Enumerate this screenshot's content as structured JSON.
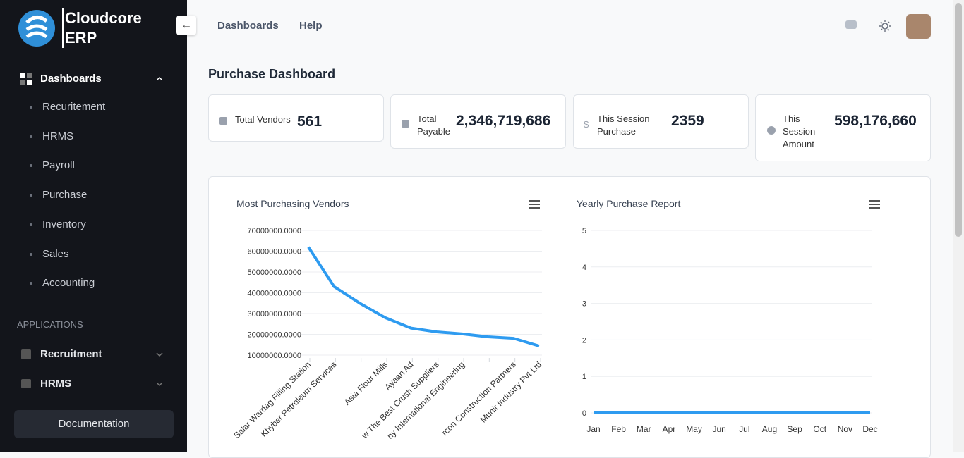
{
  "brand": {
    "line1": "Cloudcore",
    "line2": "ERP"
  },
  "sidebar": {
    "section": "Dashboards",
    "items": [
      "Recuritement",
      "HRMS",
      "Payroll",
      "Purchase",
      "Inventory",
      "Sales",
      "Accounting"
    ],
    "apps_heading": "APPLICATIONS",
    "apps": [
      "Recruitment",
      "HRMS"
    ],
    "documentation": "Documentation"
  },
  "header": {
    "nav": [
      "Dashboards",
      "Help"
    ]
  },
  "page_title": "Purchase Dashboard",
  "cards": [
    {
      "label": "Total Vendors",
      "value": "561"
    },
    {
      "label": "Total Payable",
      "value": "2,346,719,686"
    },
    {
      "label": "This Session Purchase",
      "value": "2359"
    },
    {
      "label": "This Session Amount",
      "value": "598,176,660"
    }
  ],
  "chart_data": [
    {
      "type": "line",
      "title": "Most Purchasing Vendors",
      "categories": [
        "Salar Wardag Filling Station",
        "Khyber Petroleum Services",
        null,
        "Asia Flour Mills",
        "Ayaan Ad",
        "w The Best Crush Suppliers",
        "ny International Engineering",
        null,
        "rcon Construction Partners",
        "Munir Industry Pvt Ltd"
      ],
      "series": [
        {
          "name": "Purchase",
          "color": "#2e9bf0",
          "values": [
            62000000,
            43000000,
            35000000,
            28000000,
            23000000,
            21200000,
            20200000,
            18800000,
            18100000,
            14400000
          ]
        }
      ],
      "ylim": [
        10000000,
        70000000
      ],
      "yticks": [
        {
          "value": 10000000,
          "label": "10000000.0000"
        },
        {
          "value": 20000000,
          "label": "20000000.0000"
        },
        {
          "value": 30000000,
          "label": "30000000.0000"
        },
        {
          "value": 40000000,
          "label": "40000000.0000"
        },
        {
          "value": 50000000,
          "label": "50000000.0000"
        },
        {
          "value": 60000000,
          "label": "60000000.0000"
        },
        {
          "value": 70000000,
          "label": "70000000.0000"
        }
      ],
      "grid": true
    },
    {
      "type": "line",
      "title": "Yearly Purchase Report",
      "categories": [
        "Jan",
        "Feb",
        "Mar",
        "Apr",
        "May",
        "Jun",
        "Jul",
        "Aug",
        "Sep",
        "Oct",
        "Nov",
        "Dec"
      ],
      "series": [
        {
          "name": "Purchase",
          "color": "#2e9bf0",
          "values": [
            0,
            0,
            0,
            0,
            0,
            0,
            0,
            0,
            0,
            0,
            0,
            0
          ]
        }
      ],
      "ylim": [
        0,
        5
      ],
      "yticks": [
        0,
        1,
        2,
        3,
        4,
        5
      ],
      "grid": true
    }
  ]
}
